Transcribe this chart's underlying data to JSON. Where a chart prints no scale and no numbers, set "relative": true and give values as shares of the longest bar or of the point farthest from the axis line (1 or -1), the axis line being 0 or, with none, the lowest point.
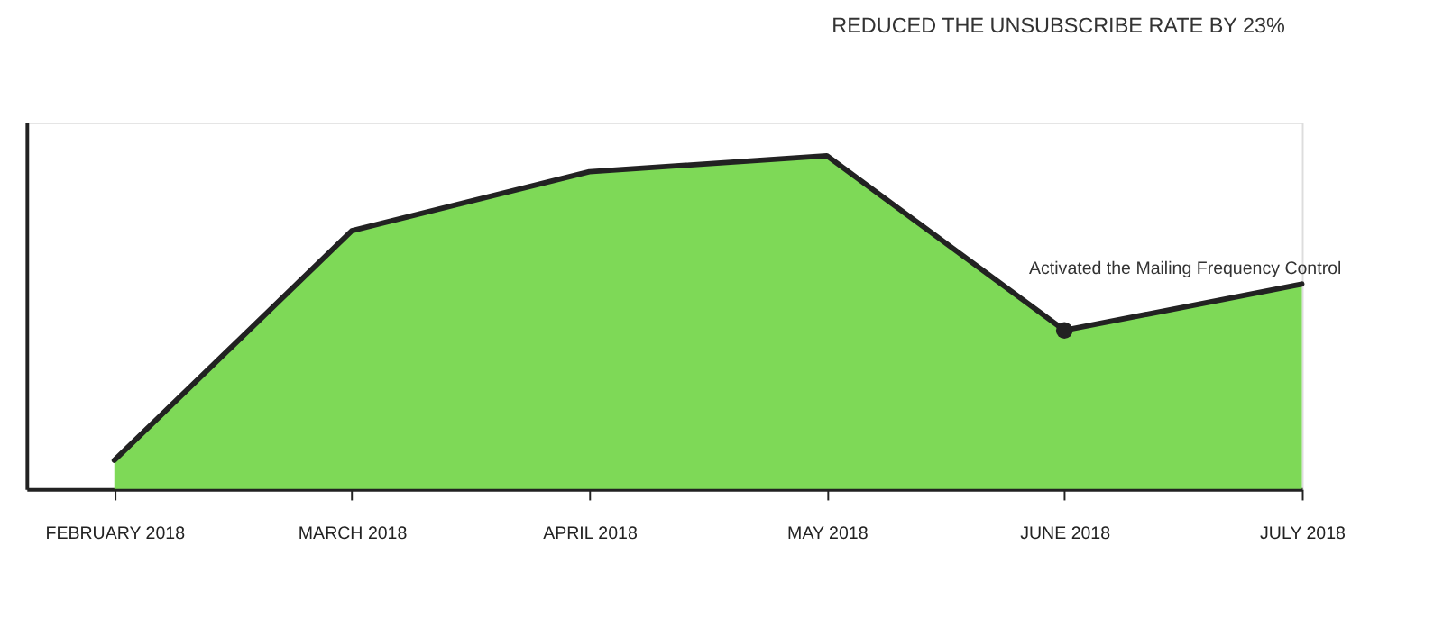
{
  "chart_data": {
    "type": "area",
    "relative": true,
    "categories": [
      "FEBRUARY 2018",
      "MARCH 2018",
      "APRIL 2018",
      "MAY 2018",
      "JUNE 2018",
      "JULY 2018"
    ],
    "series": [
      {
        "color": "#7ed957",
        "values": [
          0.086,
          0.775,
          0.952,
          1,
          0.476,
          0.615
        ]
      }
    ],
    "annotations": [
      "REDUCED THE UNSUBSCRIBE RATE BY 23%",
      {
        "text": "Activated the Mailing Frequency Control",
        "x": "JUNE 2018",
        "y": 0.476
      }
    ],
    "grid": false
  }
}
